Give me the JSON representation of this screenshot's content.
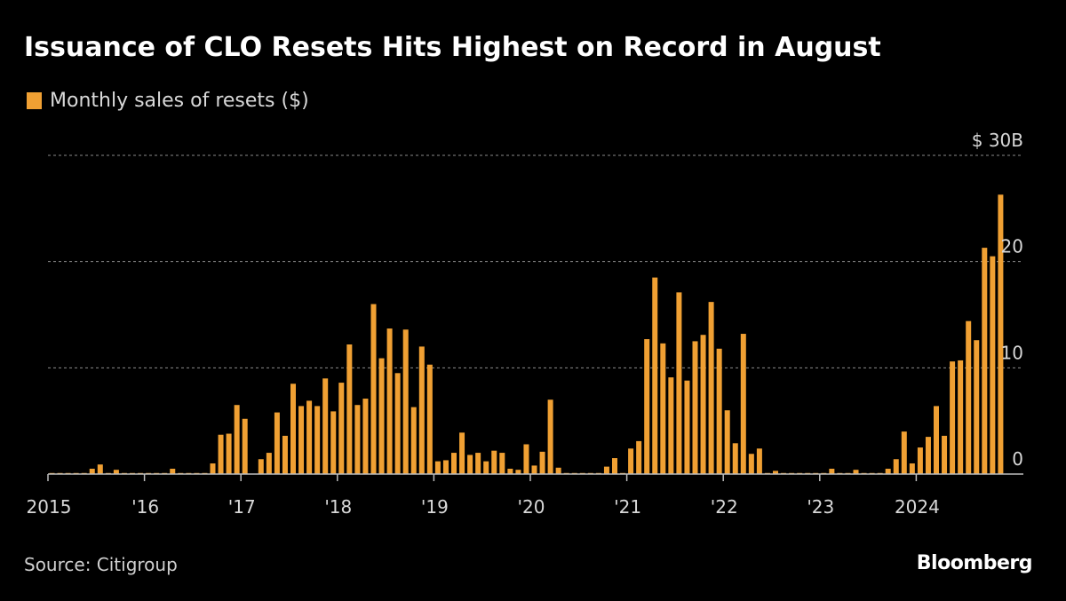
{
  "header": {
    "title": "Issuance of CLO Resets Hits Highest on Record in August"
  },
  "footer": {
    "source": "Source: Citigroup",
    "brand": "Bloomberg"
  },
  "colors": {
    "bar": "#f0a033",
    "grid": "#8a8a8a",
    "axis": "#bdbdbd",
    "background": "#000000"
  },
  "chart_data": {
    "type": "bar",
    "title": "Issuance of CLO Resets Hits Highest on Record in August",
    "xlabel": "",
    "ylabel": "",
    "ylim": [
      0,
      30
    ],
    "grid": true,
    "legend_position": "top-left",
    "y_ticks": [
      {
        "value": 30,
        "label": "$ 30B"
      },
      {
        "value": 20,
        "label": "20"
      },
      {
        "value": 10,
        "label": "10"
      },
      {
        "value": 0,
        "label": "0"
      }
    ],
    "x_ticks": [
      {
        "month_index": 0,
        "label": "2015"
      },
      {
        "month_index": 12,
        "label": "'16"
      },
      {
        "month_index": 24,
        "label": "'17"
      },
      {
        "month_index": 36,
        "label": "'18"
      },
      {
        "month_index": 48,
        "label": "'19"
      },
      {
        "month_index": 60,
        "label": "'20"
      },
      {
        "month_index": 72,
        "label": "'21"
      },
      {
        "month_index": 84,
        "label": "'22"
      },
      {
        "month_index": 96,
        "label": "'23"
      },
      {
        "month_index": 108,
        "label": "2024"
      }
    ],
    "series": [
      {
        "name": "Monthly sales of resets ($)",
        "unit": "B",
        "start": "2015-01",
        "values": [
          0.1,
          0.1,
          0.1,
          0.1,
          0.1,
          0.5,
          0.9,
          0.1,
          0.4,
          0.1,
          0.1,
          0.1,
          0.1,
          0.1,
          0.1,
          0.5,
          0.1,
          0.1,
          0.1,
          0.1,
          1.0,
          3.7,
          3.8,
          6.5,
          5.2,
          0.0,
          1.4,
          2.0,
          5.8,
          3.6,
          8.5,
          6.4,
          6.9,
          6.4,
          9.0,
          5.9,
          8.6,
          12.2,
          6.5,
          7.1,
          16.0,
          10.9,
          13.7,
          9.5,
          13.6,
          6.3,
          12.0,
          10.3,
          1.2,
          1.3,
          2.0,
          3.9,
          1.8,
          2.0,
          1.2,
          2.2,
          2.0,
          0.5,
          0.4,
          2.8,
          0.8,
          2.1,
          7.0,
          0.6,
          0.1,
          0.1,
          0.1,
          0.1,
          0.1,
          0.7,
          1.5,
          0.1,
          2.4,
          3.1,
          12.7,
          18.5,
          12.3,
          9.1,
          17.1,
          8.8,
          12.5,
          13.1,
          16.2,
          11.8,
          6.0,
          2.9,
          13.2,
          1.9,
          2.4,
          0.1,
          0.3,
          0.1,
          0.1,
          0.1,
          0.1,
          0.1,
          0.1,
          0.5,
          0.1,
          0.1,
          0.4,
          0.1,
          0.1,
          0.1,
          0.5,
          1.4,
          4.0,
          1.0,
          2.5,
          3.5,
          6.4,
          3.6,
          10.6,
          10.7,
          14.4,
          12.6,
          21.3,
          20.5,
          26.3
        ]
      }
    ]
  }
}
